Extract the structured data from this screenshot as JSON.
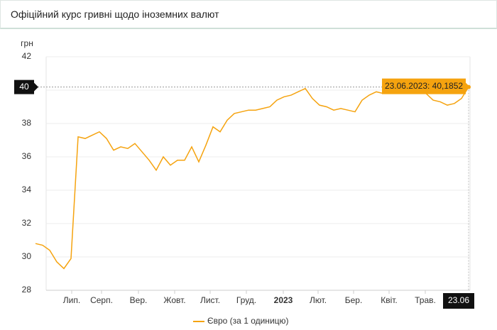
{
  "chart_data": {
    "type": "line",
    "title": "Офіційний курс гривні щодо іноземних валют",
    "y_label": "грн",
    "series": [
      {
        "name": "Євро (за 1 одиницю)",
        "color": "#f5a30f",
        "values": [
          30.8,
          30.7,
          30.4,
          29.7,
          29.3,
          29.9,
          37.2,
          37.1,
          37.3,
          37.5,
          37.1,
          36.4,
          36.6,
          36.5,
          36.8,
          36.3,
          35.8,
          35.2,
          36.0,
          35.5,
          35.8,
          35.8,
          36.6,
          35.7,
          36.7,
          37.8,
          37.5,
          38.2,
          38.6,
          38.7,
          38.8,
          38.8,
          38.9,
          39.0,
          39.4,
          39.6,
          39.7,
          39.9,
          40.1,
          39.5,
          39.1,
          39.0,
          38.8,
          38.9,
          38.8,
          38.7,
          39.4,
          39.7,
          39.9,
          39.8,
          39.9,
          40.0,
          40.1,
          39.9,
          40.0,
          39.8,
          39.4,
          39.3,
          39.1,
          39.2,
          39.5,
          40.1852
        ]
      }
    ],
    "xlim": [
      0,
      61
    ],
    "xticks": [
      {
        "value": 5.1,
        "label": "Лип."
      },
      {
        "value": 9.3,
        "label": "Серп."
      },
      {
        "value": 14.5,
        "label": "Вер."
      },
      {
        "value": 19.6,
        "label": "Жовт."
      },
      {
        "value": 24.6,
        "label": "Лист."
      },
      {
        "value": 29.7,
        "label": "Груд."
      },
      {
        "value": 34.9,
        "label": "2023"
      },
      {
        "value": 39.8,
        "label": "Лют."
      },
      {
        "value": 44.8,
        "label": "Бер."
      },
      {
        "value": 49.8,
        "label": "Квіт."
      },
      {
        "value": 54.9,
        "label": "Трав."
      }
    ],
    "ylim": [
      28,
      42
    ],
    "yticks": [
      28,
      30,
      32,
      34,
      36,
      38,
      40,
      42
    ],
    "grid": true,
    "crosshair": {
      "y_label": "40",
      "x_label": "23.06",
      "tooltip": "23.06.2023: 40,1852"
    }
  }
}
